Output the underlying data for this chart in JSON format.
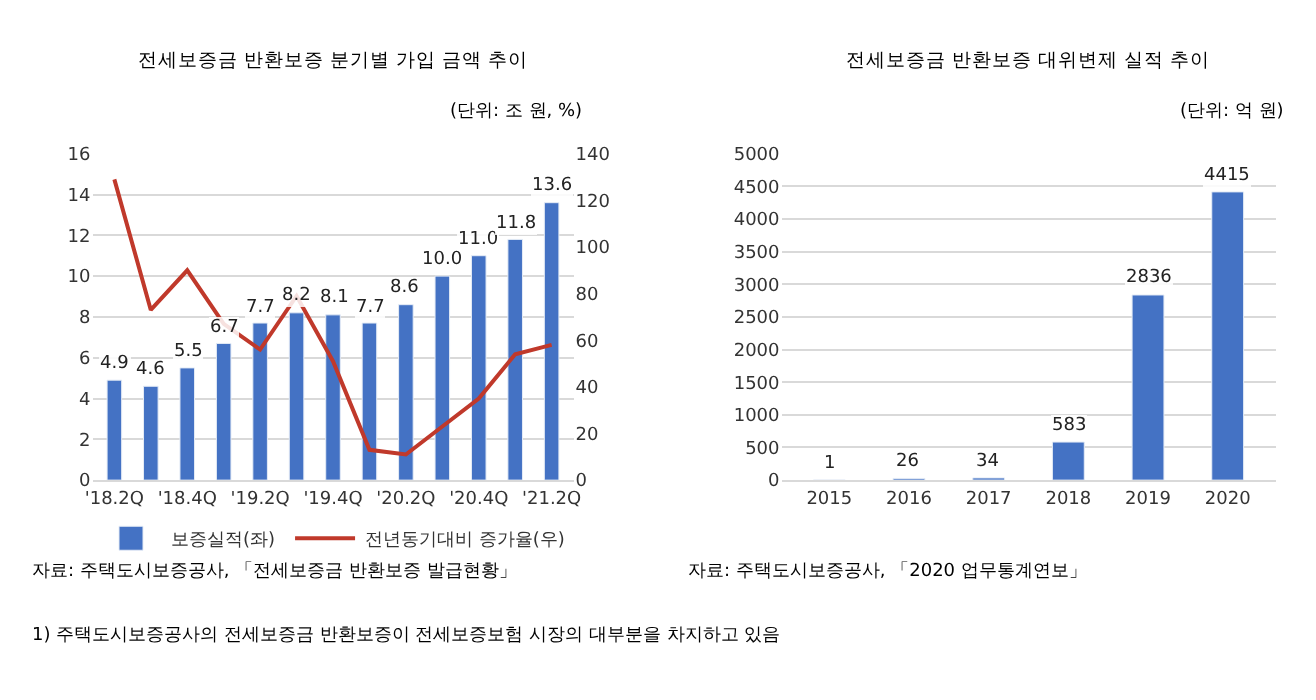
{
  "chart_data": [
    {
      "type": "bar",
      "title": "전세보증금 반환보증 분기별 가입 금액 추이",
      "subtitle": "(단위: 조 원, %)",
      "categories": [
        "'18.2Q",
        null,
        "'18.4Q",
        null,
        "'19.2Q",
        null,
        "'19.4Q",
        null,
        "'20.2Q",
        null,
        "'20.4Q",
        null,
        "'21.2Q"
      ],
      "series": [
        {
          "name": "보증실적(좌)",
          "type": "bar",
          "color": "#4472c4",
          "values": [
            4.9,
            4.6,
            5.5,
            6.7,
            7.7,
            8.2,
            8.1,
            7.7,
            8.6,
            10.0,
            11.0,
            11.8,
            13.6
          ],
          "value_labels": [
            "4.9",
            "4.6",
            "5.5",
            "6.7",
            "7.7",
            "8.2",
            "8.1",
            "7.7",
            "8.6",
            "10.0",
            "11.0",
            "11.8",
            "13.6"
          ]
        },
        {
          "name": "전년동기대비 증가율(우)",
          "type": "line",
          "axis": "y2",
          "color": "#c0392b",
          "values": [
            129,
            73,
            90,
            67,
            56,
            79,
            51,
            13,
            11,
            23,
            35,
            54,
            58
          ]
        }
      ],
      "ylim": [
        0,
        16
      ],
      "yticks": [
        0,
        2,
        4,
        6,
        8,
        10,
        12,
        14,
        16
      ],
      "y2lim": [
        0,
        140
      ],
      "y2ticks": [
        0,
        20,
        40,
        60,
        80,
        100,
        120,
        140
      ],
      "grid": "y",
      "legend": "bottom",
      "marker": "none",
      "line_style": "solid",
      "annotations": [
        "자료: 주택도시보증공사, 「전세보증금 반환보증 발급현황」",
        "1) 주택도시보증공사의 전세보증금 반환보증이 전세보증보험 시장의 대부분을 차지하고 있음"
      ]
    },
    {
      "type": "bar",
      "title": "전세보증금 반환보증 대위변제 실적 추이",
      "subtitle": "(단위: 억 원)",
      "categories": [
        "2015",
        "2016",
        "2017",
        "2018",
        "2019",
        "2020"
      ],
      "values": [
        1,
        26,
        34,
        583,
        2836,
        4415
      ],
      "color": "#4472c4",
      "ylim": [
        0,
        5000
      ],
      "yticks": [
        0,
        500,
        1000,
        1500,
        2000,
        2500,
        3000,
        3500,
        4000,
        4500,
        5000
      ],
      "grid": "y",
      "data_labels": true,
      "annotations": [
        "자료: 주택도시보증공사, 「2020 업무통계연보」"
      ]
    }
  ]
}
